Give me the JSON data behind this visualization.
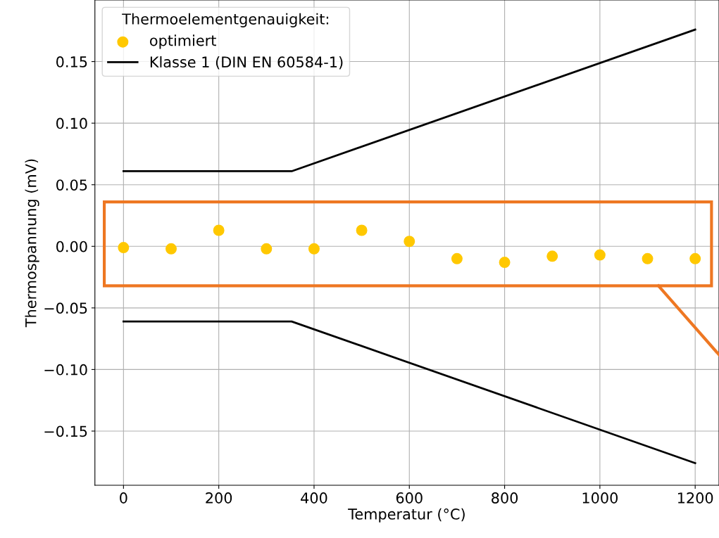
{
  "chart_data": {
    "type": "scatter",
    "xlabel": "Temperatur (°C)",
    "ylabel": "Thermospannung (mV)",
    "legend_title": "Thermoelementgenauigkeit:",
    "series": [
      {
        "name": "optimiert",
        "color": "#ffc800",
        "marker": "circle",
        "x": [
          0,
          100,
          200,
          300,
          400,
          500,
          600,
          700,
          800,
          900,
          1000,
          1100,
          1200
        ],
        "values": [
          -0.001,
          -0.002,
          0.013,
          -0.002,
          -0.002,
          0.013,
          0.004,
          -0.01,
          -0.013,
          -0.008,
          -0.007,
          -0.01,
          -0.01
        ]
      },
      {
        "name": "Klasse 1 (DIN EN 60584-1)",
        "type": "line",
        "color": "#000000",
        "marker": "none",
        "x": [
          0,
          353,
          1200
        ],
        "values": [
          0.061,
          0.061,
          0.176
        ]
      },
      {
        "type": "line",
        "color": "#000000",
        "marker": "none",
        "x": [
          0,
          353,
          1200
        ],
        "values": [
          -0.061,
          -0.061,
          -0.176
        ]
      }
    ],
    "xlim": [
      -60,
      1250
    ],
    "ylim": [
      -0.194,
      0.2
    ],
    "xticks": [
      0,
      200,
      400,
      600,
      800,
      1000,
      1200
    ],
    "yticks": [
      {
        "value": -0.15,
        "label": "−0.15"
      },
      {
        "value": -0.1,
        "label": "−0.10"
      },
      {
        "value": -0.05,
        "label": "−0.05"
      },
      {
        "value": 0,
        "label": "0.00"
      },
      {
        "value": 0.05,
        "label": "0.05"
      },
      {
        "value": 0.1,
        "label": "0.10"
      },
      {
        "value": 0.15,
        "label": "0.15"
      }
    ],
    "grid": true,
    "legend": "top left"
  }
}
